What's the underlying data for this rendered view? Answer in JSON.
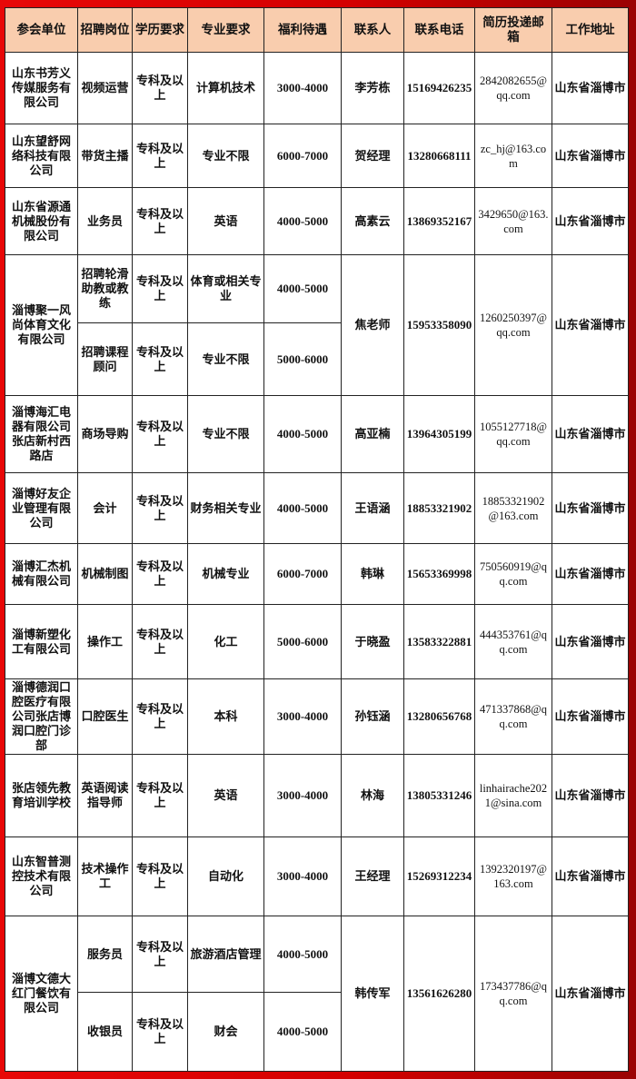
{
  "colors": {
    "header_bg": "#f9cdae",
    "frame": "#d40000"
  },
  "headers": [
    "参会单位",
    "招聘岗位",
    "学历要求",
    "专业要求",
    "福利待遇",
    "联系人",
    "联系电话",
    "简历投递邮箱",
    "工作地址"
  ],
  "companies": [
    {
      "name": "山东书芳义传媒服务有限公司",
      "contact": "李芳栋",
      "phone": "15169426235",
      "email": "2842082655@qq.com",
      "address": "山东省淄博市",
      "positions": [
        {
          "title": "视频运营",
          "education": "专科及以上",
          "major": "计算机技术",
          "salary": "3000-4000"
        }
      ]
    },
    {
      "name": "山东望舒网络科技有限公司",
      "contact": "贺经理",
      "phone": "13280668111",
      "email": "zc_hj@163.com",
      "address": "山东省淄博市",
      "positions": [
        {
          "title": "带货主播",
          "education": "专科及以上",
          "major": "专业不限",
          "salary": "6000-7000"
        }
      ]
    },
    {
      "name": "山东省源通机械股份有限公司",
      "contact": "高素云",
      "phone": "13869352167",
      "email": "3429650@163.com",
      "address": "山东省淄博市",
      "positions": [
        {
          "title": "业务员",
          "education": "专科及以上",
          "major": "英语",
          "salary": "4000-5000"
        }
      ]
    },
    {
      "name": "淄博聚一风尚体育文化有限公司",
      "contact": "焦老师",
      "phone": "15953358090",
      "email": "1260250397@qq.com",
      "address": "山东省淄博市",
      "positions": [
        {
          "title": "招聘轮滑助教或教练",
          "education": "专科及以上",
          "major": "体育或相关专业",
          "salary": "4000-5000"
        },
        {
          "title": "招聘课程顾问",
          "education": "专科及以上",
          "major": "专业不限",
          "salary": "5000-6000"
        }
      ]
    },
    {
      "name": "淄博海汇电器有限公司张店新村西路店",
      "contact": "高亚楠",
      "phone": "13964305199",
      "email": "1055127718@qq.com",
      "address": "山东省淄博市",
      "positions": [
        {
          "title": "商场导购",
          "education": "专科及以上",
          "major": "专业不限",
          "salary": "4000-5000"
        }
      ]
    },
    {
      "name": "淄博好友企业管理有限公司",
      "contact": "王语涵",
      "phone": "18853321902",
      "email": "18853321902@163.com",
      "address": "山东省淄博市",
      "positions": [
        {
          "title": "会计",
          "education": "专科及以上",
          "major": "财务相关专业",
          "salary": "4000-5000"
        }
      ]
    },
    {
      "name": "淄博汇杰机械有限公司",
      "contact": "韩琳",
      "phone": "15653369998",
      "email": "750560919@qq.com",
      "address": "山东省淄博市",
      "positions": [
        {
          "title": "机械制图",
          "education": "专科及以上",
          "major": "机械专业",
          "salary": "6000-7000"
        }
      ]
    },
    {
      "name": "淄博新塑化工有限公司",
      "contact": "于晓盈",
      "phone": "13583322881",
      "email": "444353761@qq.com",
      "address": "山东省淄博市",
      "positions": [
        {
          "title": "操作工",
          "education": "专科及以上",
          "major": "化工",
          "salary": "5000-6000"
        }
      ]
    },
    {
      "name": "淄博德润口腔医疗有限公司张店博润口腔门诊部",
      "contact": "孙钰涵",
      "phone": "13280656768",
      "email": "471337868@qq.com",
      "address": "山东省淄博市",
      "positions": [
        {
          "title": "口腔医生",
          "education": "专科及以上",
          "major": "本科",
          "salary": "3000-4000"
        }
      ]
    },
    {
      "name": "张店领先教育培训学校",
      "contact": "林海",
      "phone": "13805331246",
      "email": "linhairache2021@sina.com",
      "address": "山东省淄博市",
      "positions": [
        {
          "title": "英语阅读指导师",
          "education": "专科及以上",
          "major": "英语",
          "salary": "3000-4000"
        }
      ]
    },
    {
      "name": "山东智普测控技术有限公司",
      "contact": "王经理",
      "phone": "15269312234",
      "email": "1392320197@163.com",
      "address": "山东省淄博市",
      "positions": [
        {
          "title": "技术操作工",
          "education": "专科及以上",
          "major": "自动化",
          "salary": "3000-4000"
        }
      ]
    },
    {
      "name": "淄博文德大红门餐饮有限公司",
      "contact": "韩传军",
      "phone": "13561626280",
      "email": "173437786@qq.com",
      "address": "山东省淄博市",
      "positions": [
        {
          "title": "服务员",
          "education": "专科及以上",
          "major": "旅游酒店管理",
          "salary": "4000-5000"
        },
        {
          "title": "收银员",
          "education": "专科及以上",
          "major": "财会",
          "salary": "4000-5000"
        }
      ]
    }
  ]
}
